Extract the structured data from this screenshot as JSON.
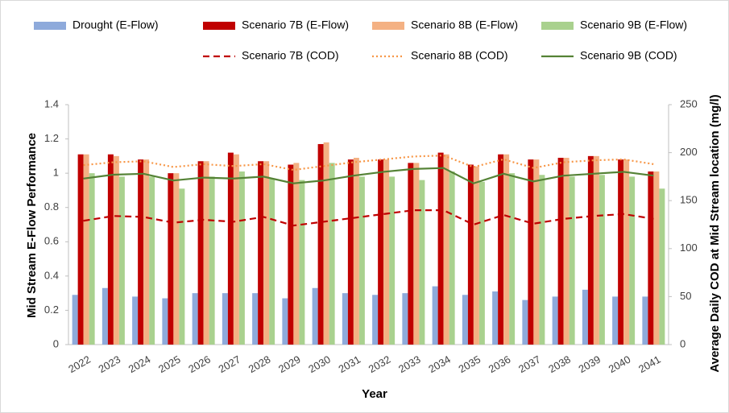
{
  "chart_data": {
    "type": "bar",
    "categories": [
      "2022",
      "2023",
      "2024",
      "2025",
      "2026",
      "2027",
      "2028",
      "2029",
      "2030",
      "2031",
      "2032",
      "2033",
      "2034",
      "2035",
      "2036",
      "2037",
      "2038",
      "2039",
      "2040",
      "2041"
    ],
    "series": [
      {
        "name": "Drought (E-Flow)",
        "color": "#8eaadb",
        "values": [
          0.29,
          0.33,
          0.28,
          0.27,
          0.3,
          0.3,
          0.3,
          0.27,
          0.33,
          0.3,
          0.29,
          0.3,
          0.34,
          0.29,
          0.31,
          0.26,
          0.28,
          0.32,
          0.28,
          0.28
        ]
      },
      {
        "name": "Scenario 7B (E-Flow)",
        "color": "#c00000",
        "values": [
          1.11,
          1.11,
          1.08,
          1.0,
          1.07,
          1.12,
          1.07,
          1.05,
          1.17,
          1.08,
          1.08,
          1.06,
          1.12,
          1.05,
          1.11,
          1.08,
          1.09,
          1.1,
          1.08,
          1.01
        ]
      },
      {
        "name": "Scenario 8B (E-Flow)",
        "color": "#f4b183",
        "values": [
          1.11,
          1.1,
          1.08,
          1.0,
          1.07,
          1.11,
          1.07,
          1.06,
          1.18,
          1.09,
          1.08,
          1.06,
          1.11,
          1.04,
          1.11,
          1.08,
          1.09,
          1.1,
          1.08,
          1.01
        ]
      },
      {
        "name": "Scenario 9B (E-Flow)",
        "color": "#a9d18e",
        "values": [
          1.0,
          0.98,
          0.98,
          0.91,
          0.98,
          1.01,
          0.97,
          0.96,
          1.06,
          0.98,
          0.98,
          0.96,
          1.01,
          0.95,
          1.0,
          0.99,
          0.98,
          0.99,
          0.98,
          0.91
        ]
      },
      {
        "name": "Scenario 7B (COD)",
        "color": "#c00000",
        "axis": "y2",
        "line": "dashed",
        "values": [
          129,
          134,
          133,
          127,
          130,
          128,
          133,
          124,
          128,
          132,
          136,
          140,
          140,
          125,
          135,
          126,
          131,
          134,
          136,
          131
        ]
      },
      {
        "name": "Scenario 8B (COD)",
        "color": "#f79646",
        "axis": "y2",
        "line": "dotted",
        "values": [
          187,
          190,
          191,
          185,
          188,
          186,
          188,
          182,
          186,
          190,
          193,
          196,
          197,
          185,
          193,
          184,
          190,
          192,
          193,
          188
        ]
      },
      {
        "name": "Scenario 9B (COD)",
        "color": "#548235",
        "axis": "y2",
        "line": "solid",
        "values": [
          173,
          177,
          178,
          171,
          174,
          173,
          175,
          168,
          171,
          176,
          180,
          183,
          184,
          168,
          178,
          170,
          176,
          178,
          180,
          176
        ]
      }
    ],
    "ylabel": "Mid Stream E-Flow Performance",
    "y2label": "Average Daily COD at Mid Stream location (mg/l)",
    "xlabel": "Year",
    "ylim": [
      0,
      1.4
    ],
    "yticks": [
      0,
      0.2,
      0.4,
      0.6,
      0.8,
      1,
      1.2,
      1.4
    ],
    "y2lim": [
      0,
      250
    ],
    "y2ticks": [
      0,
      50,
      100,
      150,
      200,
      250
    ]
  }
}
